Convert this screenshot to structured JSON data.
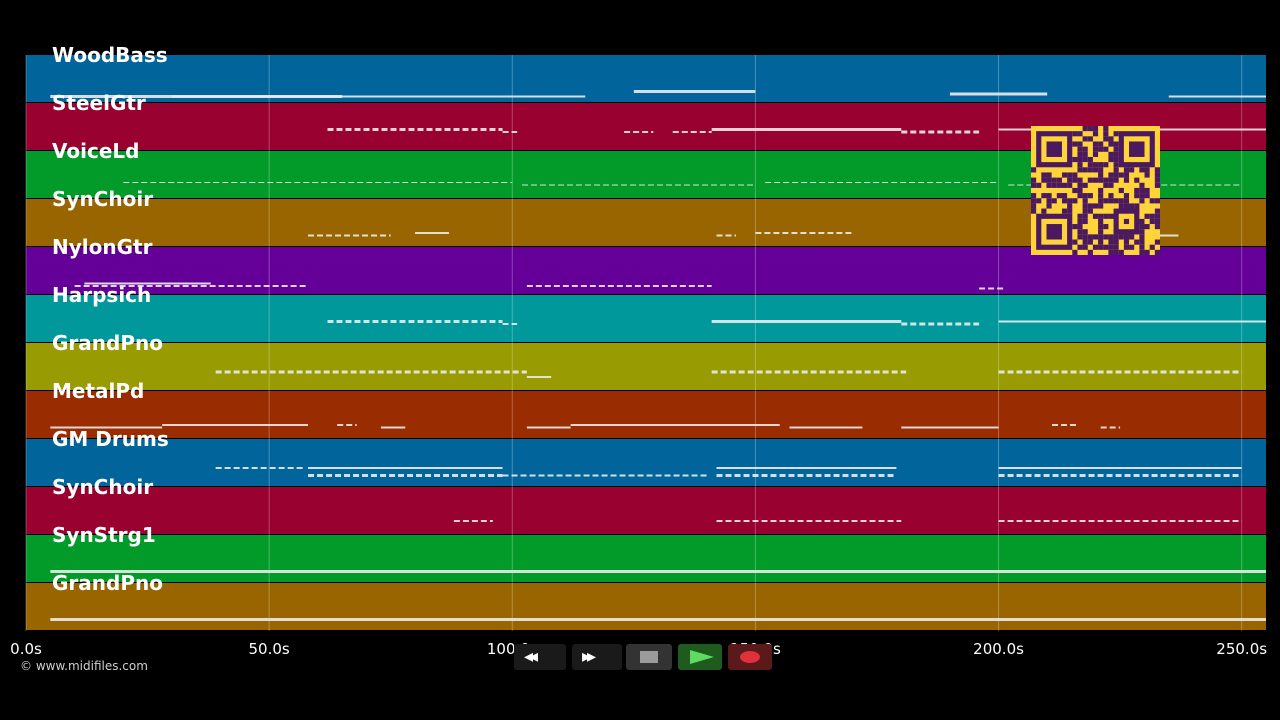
{
  "tracks": [
    {
      "name": "WoodBass",
      "color": "#01659b",
      "notes": [
        [
          0,
          5,
          65,
          7,
          3
        ],
        [
          0,
          30,
          115,
          7,
          2
        ],
        [
          0,
          125,
          150,
          5,
          3
        ],
        [
          0,
          190,
          210,
          6,
          3
        ],
        [
          0,
          235,
          255,
          7,
          2
        ]
      ]
    },
    {
      "name": "SteelGtr",
      "color": "#990130",
      "notes": [
        [
          58,
          62,
          98,
          1,
          3
        ],
        [
          1,
          98,
          101,
          2,
          2
        ],
        [
          1,
          123,
          129,
          2,
          2
        ],
        [
          1,
          133,
          141,
          2,
          2
        ],
        [
          0,
          141,
          180,
          1,
          3
        ],
        [
          1,
          180,
          196,
          2,
          3
        ],
        [
          0,
          200,
          255,
          1,
          2
        ]
      ]
    },
    {
      "name": "VoiceLd",
      "color": "#029b2a",
      "notes": [
        [
          1,
          20,
          100,
          3,
          1
        ],
        [
          1,
          102,
          150,
          4,
          1
        ],
        [
          1,
          152,
          200,
          3,
          1
        ],
        [
          1,
          202,
          250,
          4,
          1
        ]
      ]
    },
    {
      "name": "SynChoir",
      "color": "#986501",
      "notes": [
        [
          1,
          58,
          75,
          5,
          2
        ],
        [
          0,
          80,
          87,
          4,
          2
        ],
        [
          1,
          142,
          146,
          5,
          2
        ],
        [
          1,
          150,
          170,
          4,
          2
        ],
        [
          0,
          230,
          237,
          5,
          2
        ]
      ]
    },
    {
      "name": "NylonGtr",
      "color": "#640098",
      "notes": [
        [
          1,
          10,
          58,
          6,
          2
        ],
        [
          0,
          12,
          38,
          5,
          2
        ],
        [
          1,
          103,
          141,
          6,
          2
        ],
        [
          1,
          196,
          201,
          7,
          2
        ]
      ]
    },
    {
      "name": "Harpsich",
      "color": "#00989b",
      "notes": [
        [
          58,
          62,
          98,
          1,
          3
        ],
        [
          1,
          98,
          101,
          2,
          2
        ],
        [
          0,
          141,
          180,
          1,
          3
        ],
        [
          1,
          180,
          196,
          2,
          3
        ],
        [
          0,
          200,
          255,
          1,
          2
        ]
      ]
    },
    {
      "name": "GrandPno",
      "color": "#989b01",
      "notes": [
        [
          1,
          39,
          103,
          2,
          3
        ],
        [
          0,
          103,
          108,
          4,
          2
        ],
        [
          1,
          141,
          181,
          2,
          3
        ],
        [
          1,
          200,
          250,
          2,
          3
        ]
      ]
    },
    {
      "name": "MetalPd",
      "color": "#992c01",
      "notes": [
        [
          0,
          5,
          28,
          5,
          2
        ],
        [
          0,
          28,
          58,
          4,
          2
        ],
        [
          1,
          64,
          68,
          4,
          2
        ],
        [
          0,
          73,
          78,
          5,
          2
        ],
        [
          0,
          103,
          112,
          5,
          2
        ],
        [
          0,
          112,
          155,
          4,
          2
        ],
        [
          0,
          157,
          172,
          5,
          2
        ],
        [
          0,
          180,
          200,
          5,
          2
        ],
        [
          1,
          211,
          216,
          4,
          2
        ],
        [
          1,
          221,
          225,
          5,
          2
        ]
      ]
    },
    {
      "name": "GM Drums",
      "color": "#01659b",
      "notes": [
        [
          1,
          39,
          57,
          2,
          2
        ],
        [
          0,
          58,
          98,
          2,
          2
        ],
        [
          1,
          58,
          98,
          5,
          3
        ],
        [
          1,
          98,
          140,
          5,
          2
        ],
        [
          0,
          142,
          179,
          2,
          2
        ],
        [
          1,
          142,
          179,
          5,
          3
        ],
        [
          0,
          200,
          250,
          2,
          2
        ],
        [
          1,
          200,
          250,
          5,
          3
        ]
      ]
    },
    {
      "name": "SynChoir",
      "color": "#990130",
      "notes": [
        [
          1,
          88,
          96,
          4,
          2
        ],
        [
          1,
          142,
          180,
          4,
          2
        ],
        [
          1,
          200,
          250,
          4,
          2
        ]
      ]
    },
    {
      "name": "SynStrg1",
      "color": "#029b2a",
      "notes": [
        [
          0,
          5,
          255,
          5,
          3
        ]
      ]
    },
    {
      "name": "GrandPno",
      "color": "#986501",
      "notes": [
        [
          0,
          5,
          255,
          5,
          3
        ]
      ]
    }
  ],
  "time_axis": {
    "start": 0,
    "end": 255,
    "ticks": [
      "0.0s",
      "50.0s",
      "100.0s",
      "150.0s",
      "200.0s",
      "250.0s"
    ],
    "tick_values": [
      0,
      50,
      100,
      150,
      200,
      250
    ]
  },
  "copyright": "© www.midifiles.com",
  "transport": {
    "rewind_label": "◂◂",
    "forward_label": "▸▸",
    "colors": {
      "play": "#2fa32f",
      "record": "#e0303a",
      "stop": "#9a9a9a"
    }
  }
}
